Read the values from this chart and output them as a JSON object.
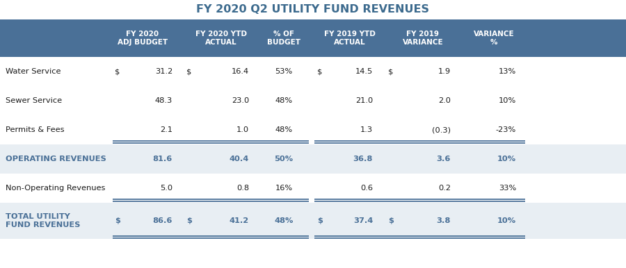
{
  "title": "FY 2020 Q2 UTILITY FUND REVENUES",
  "header_bg": "#4a7097",
  "header_text_color": "#ffffff",
  "title_color": "#3d6b8e",
  "row_highlight_bg": "#e8eef3",
  "row_normal_bg": "#ffffff",
  "accent_color": "#4a7097",
  "col_headers": [
    "FY 2020\nADJ BUDGET",
    "FY 2020 YTD\nACTUAL",
    "% OF\nBUDGET",
    "FY 2019 YTD\nACTUAL",
    "FY 2019\nVARIANCE",
    "VARIANCE\n%"
  ],
  "rows": [
    {
      "label": "Water Service",
      "dollar1": true,
      "col1": "31.2",
      "dollar2": true,
      "col2": "16.4",
      "col3": "53%",
      "dollar3": true,
      "col4": "14.5",
      "dollar4": true,
      "col5": "1.9",
      "col6": "13%",
      "bold": false,
      "highlight": false,
      "separator_above": false
    },
    {
      "label": "Sewer Service",
      "dollar1": false,
      "col1": "48.3",
      "dollar2": false,
      "col2": "23.0",
      "col3": "48%",
      "dollar3": false,
      "col4": "21.0",
      "dollar4": false,
      "col5": "2.0",
      "col6": "10%",
      "bold": false,
      "highlight": false,
      "separator_above": false
    },
    {
      "label": "Permits & Fees",
      "dollar1": false,
      "col1": "2.1",
      "dollar2": false,
      "col2": "1.0",
      "col3": "48%",
      "dollar3": false,
      "col4": "1.3",
      "dollar4": false,
      "col5": "(0.3)",
      "col6": "-23%",
      "bold": false,
      "highlight": false,
      "separator_above": false
    },
    {
      "label": "OPERATING REVENUES",
      "dollar1": false,
      "col1": "81.6",
      "dollar2": false,
      "col2": "40.4",
      "col3": "50%",
      "dollar3": false,
      "col4": "36.8",
      "dollar4": false,
      "col5": "3.6",
      "col6": "10%",
      "bold": true,
      "highlight": true,
      "separator_above": true
    },
    {
      "label": "Non-Operating Revenues",
      "dollar1": false,
      "col1": "5.0",
      "dollar2": false,
      "col2": "0.8",
      "col3": "16%",
      "dollar3": false,
      "col4": "0.6",
      "dollar4": false,
      "col5": "0.2",
      "col6": "33%",
      "bold": false,
      "highlight": false,
      "separator_above": false
    },
    {
      "label": "TOTAL UTILITY\nFUND REVENUES",
      "dollar1": true,
      "col1": "86.6",
      "dollar2": true,
      "col2": "41.2",
      "col3": "48%",
      "dollar3": true,
      "col4": "37.4",
      "dollar4": true,
      "col5": "3.8",
      "col6": "10%",
      "bold": true,
      "highlight": true,
      "separator_above": true
    }
  ],
  "figw": 9.0,
  "figh": 3.86,
  "dpi": 100
}
